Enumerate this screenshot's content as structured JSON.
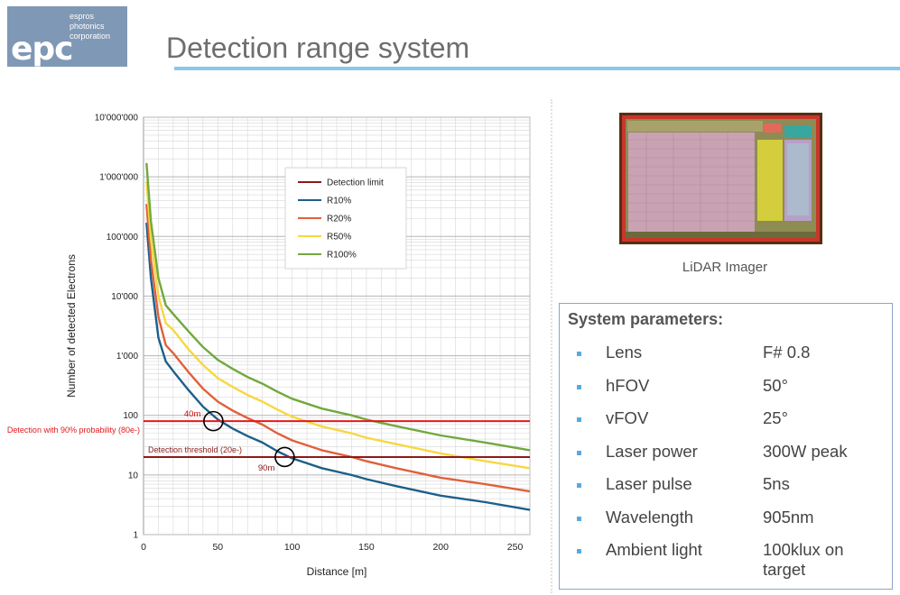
{
  "logo": {
    "mark": "epc",
    "company_lines": [
      "espros",
      "photonics",
      "corporation"
    ]
  },
  "page_title": "Detection range system",
  "chart_data": {
    "type": "line",
    "yscale": "log",
    "xlabel": "Distance [m]",
    "ylabel": "Number of detected Electrons",
    "xlim": [
      0,
      260
    ],
    "ylim": [
      1,
      10000000
    ],
    "x_ticks": [
      0,
      50,
      100,
      150,
      200,
      250
    ],
    "y_ticks": [
      1,
      10,
      100,
      1000,
      10000,
      100000,
      1000000,
      10000000
    ],
    "y_tick_labels": [
      "1",
      "10",
      "100",
      "1'000",
      "10'000",
      "100'000",
      "1'000'000",
      "10'000'000"
    ],
    "grid": true,
    "legend_position": "top-right",
    "legend": [
      "Detection  limit",
      "R10%",
      "R20%",
      "R50%",
      "R100%"
    ],
    "x": [
      2,
      5,
      10,
      15,
      20,
      30,
      40,
      50,
      60,
      70,
      80,
      90,
      100,
      120,
      140,
      150,
      170,
      200,
      230,
      260
    ],
    "series": [
      {
        "name": "R10%",
        "color": "#1d5f8a",
        "values": [
          170000,
          20000,
          2000,
          800,
          550,
          270,
          140,
          85,
          60,
          45,
          35,
          25,
          19,
          13,
          10,
          8.5,
          6.5,
          4.5,
          3.5,
          2.6
        ]
      },
      {
        "name": "R20%",
        "color": "#e0603a",
        "values": [
          350000,
          40000,
          4500,
          1500,
          1100,
          540,
          280,
          170,
          120,
          90,
          70,
          50,
          38,
          26,
          20,
          17,
          13,
          9,
          7,
          5.3
        ]
      },
      {
        "name": "R50%",
        "color": "#f6d842",
        "values": [
          850000,
          90000,
          10000,
          3500,
          2700,
          1300,
          700,
          420,
          300,
          220,
          170,
          125,
          95,
          65,
          50,
          42,
          33,
          23,
          17,
          13
        ]
      },
      {
        "name": "R100%",
        "color": "#72a83e",
        "values": [
          1700000,
          180000,
          20000,
          7000,
          5000,
          2600,
          1400,
          850,
          600,
          440,
          340,
          250,
          190,
          130,
          100,
          85,
          66,
          46,
          35,
          26
        ]
      }
    ],
    "detection_lines": [
      {
        "label": "Detection with 90% probability (80e-)",
        "value": 80,
        "color": "#e3191c"
      },
      {
        "label": "Detection threshold (20e-)",
        "value": 20,
        "color": "#8b1a1a"
      }
    ],
    "detection_limit_color": "#8b1a1a",
    "markers": [
      {
        "label": "40m",
        "x": 47,
        "y": 80
      },
      {
        "label": "90m",
        "x": 95,
        "y": 20
      }
    ]
  },
  "imager": {
    "caption": "LiDAR Imager"
  },
  "parameters": {
    "title": "System parameters:",
    "rows": [
      {
        "name": "Lens",
        "value": "F# 0.8"
      },
      {
        "name": "hFOV",
        "value": "50°"
      },
      {
        "name": "vFOV",
        "value": "25°"
      },
      {
        "name": "Laser power",
        "value": "300W peak"
      },
      {
        "name": "Laser pulse",
        "value": "5ns"
      },
      {
        "name": "Wavelength",
        "value": "905nm"
      },
      {
        "name": "Ambient light",
        "value": "100klux on target"
      }
    ]
  }
}
